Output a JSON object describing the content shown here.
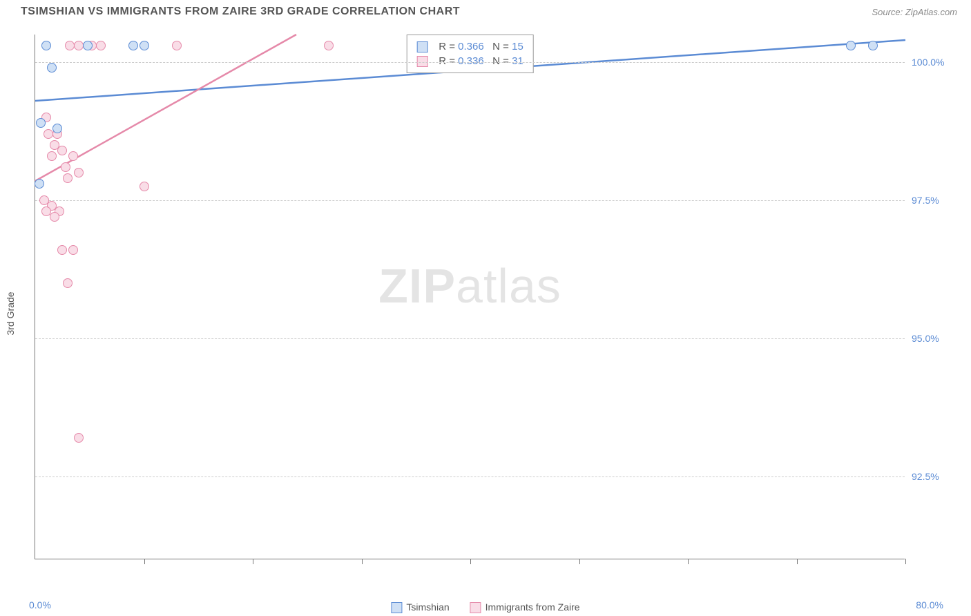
{
  "title": "TSIMSHIAN VS IMMIGRANTS FROM ZAIRE 3RD GRADE CORRELATION CHART",
  "source": "Source: ZipAtlas.com",
  "ylabel": "3rd Grade",
  "watermark_bold": "ZIP",
  "watermark_light": "atlas",
  "chart": {
    "type": "scatter",
    "xlim": [
      0,
      80
    ],
    "ylim": [
      91,
      100.5
    ],
    "yticks": [
      92.5,
      95.0,
      97.5,
      100.0
    ],
    "ytick_labels": [
      "92.5%",
      "95.0%",
      "97.5%",
      "100.0%"
    ],
    "xticks": [
      0,
      10,
      20,
      30,
      40,
      50,
      60,
      70,
      80
    ],
    "xaxis_min_label": "0.0%",
    "xaxis_max_label": "80.0%",
    "background_color": "#ffffff",
    "grid_color": "#cccccc",
    "series": [
      {
        "name": "Tsimshian",
        "color_stroke": "#5b8bd4",
        "color_fill": "#cfe0f5",
        "R": "0.366",
        "N": "15",
        "trend": {
          "x1": 0,
          "y1": 99.3,
          "x2": 80,
          "y2": 100.4
        },
        "points": [
          {
            "x": 1.0,
            "y": 100.3
          },
          {
            "x": 4.8,
            "y": 100.3
          },
          {
            "x": 9.0,
            "y": 100.3
          },
          {
            "x": 10.0,
            "y": 100.3
          },
          {
            "x": 75.0,
            "y": 100.3
          },
          {
            "x": 77.0,
            "y": 100.3
          },
          {
            "x": 1.5,
            "y": 99.9
          },
          {
            "x": 0.5,
            "y": 98.9
          },
          {
            "x": 2.0,
            "y": 98.8
          },
          {
            "x": 0.4,
            "y": 97.8
          }
        ]
      },
      {
        "name": "Immigrants from Zaire",
        "color_stroke": "#e589a9",
        "color_fill": "#f9dde7",
        "R": "0.336",
        "N": "31",
        "trend": {
          "x1": 0,
          "y1": 97.85,
          "x2": 24,
          "y2": 100.5
        },
        "points": [
          {
            "x": 3.2,
            "y": 100.3
          },
          {
            "x": 4.0,
            "y": 100.3
          },
          {
            "x": 5.2,
            "y": 100.3
          },
          {
            "x": 6.0,
            "y": 100.3
          },
          {
            "x": 13.0,
            "y": 100.3
          },
          {
            "x": 27.0,
            "y": 100.3
          },
          {
            "x": 1.0,
            "y": 99.0
          },
          {
            "x": 2.0,
            "y": 98.7
          },
          {
            "x": 1.2,
            "y": 98.7
          },
          {
            "x": 1.8,
            "y": 98.5
          },
          {
            "x": 2.5,
            "y": 98.4
          },
          {
            "x": 1.5,
            "y": 98.3
          },
          {
            "x": 3.5,
            "y": 98.3
          },
          {
            "x": 2.8,
            "y": 98.1
          },
          {
            "x": 4.0,
            "y": 98.0
          },
          {
            "x": 3.0,
            "y": 97.9
          },
          {
            "x": 10.0,
            "y": 97.75
          },
          {
            "x": 0.8,
            "y": 97.5
          },
          {
            "x": 1.5,
            "y": 97.4
          },
          {
            "x": 1.0,
            "y": 97.3
          },
          {
            "x": 2.2,
            "y": 97.3
          },
          {
            "x": 1.8,
            "y": 97.2
          },
          {
            "x": 2.5,
            "y": 96.6
          },
          {
            "x": 3.5,
            "y": 96.6
          },
          {
            "x": 3.0,
            "y": 96.0
          },
          {
            "x": 4.0,
            "y": 93.2
          }
        ]
      }
    ],
    "legend_bottom": [
      {
        "swatch_stroke": "#5b8bd4",
        "swatch_fill": "#cfe0f5",
        "label": "Tsimshian"
      },
      {
        "swatch_stroke": "#e589a9",
        "swatch_fill": "#f9dde7",
        "label": "Immigrants from Zaire"
      }
    ]
  }
}
